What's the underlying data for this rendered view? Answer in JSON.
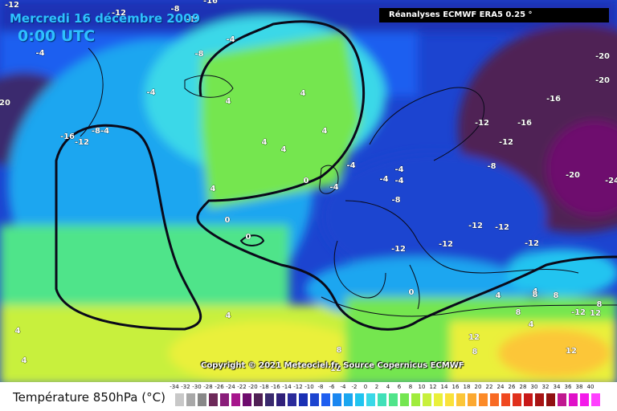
{
  "header": {
    "date": "Mercredi 16 décembre 2009",
    "time": "0:00 UTC",
    "source": "Réanalyses ECMWF ERA5 0.25 °"
  },
  "copyright": "Copyright © 2021 Meteociel.fr, Source Copernicus ECMWF",
  "legend": {
    "title": "Température 850hPa (°C)",
    "ticks": [
      "-34",
      "-32",
      "-30",
      "-28",
      "-26",
      "-24",
      "-22",
      "-20",
      "-18",
      "-16",
      "-14",
      "-12",
      "-10",
      "-8",
      "-6",
      "-4",
      "-2",
      "0",
      "2",
      "4",
      "6",
      "8",
      "10",
      "12",
      "14",
      "16",
      "18",
      "20",
      "22",
      "24",
      "26",
      "28",
      "30",
      "32",
      "34",
      "36",
      "38",
      "40"
    ],
    "colors": [
      "#c8c8c8",
      "#a8a8a8",
      "#888888",
      "#6e2a5a",
      "#8a1d7a",
      "#a6158c",
      "#6e0b6e",
      "#502055",
      "#3a2a6e",
      "#30207a",
      "#2a2a9a",
      "#1a30b4",
      "#1c44d0",
      "#1e5ef0",
      "#1a86f0",
      "#1aa6f0",
      "#20c4f0",
      "#3ad8e8",
      "#40e0b8",
      "#50e48a",
      "#74e650",
      "#a0ec3c",
      "#c8f03c",
      "#eaf03a",
      "#fae23a",
      "#fcc638",
      "#fca830",
      "#fc8a28",
      "#f86a24",
      "#f04820",
      "#e0301c",
      "#c81818",
      "#a81414",
      "#901010",
      "#c01890",
      "#e010c8",
      "#f41aea",
      "#ff40ff"
    ]
  },
  "map_labels": [
    {
      "text": "-12"
    },
    {
      "text": "-8"
    },
    {
      "text": "-16"
    },
    {
      "text": "-12"
    },
    {
      "text": "-16"
    },
    {
      "text": "-4"
    },
    {
      "text": "-8"
    },
    {
      "text": "-4"
    },
    {
      "text": "-4"
    },
    {
      "text": "4"
    },
    {
      "text": "4"
    },
    {
      "text": "4"
    },
    {
      "text": "4"
    },
    {
      "text": "4"
    },
    {
      "text": "4"
    },
    {
      "text": "0"
    },
    {
      "text": "0"
    },
    {
      "text": "0"
    },
    {
      "text": "4"
    },
    {
      "text": "-4"
    },
    {
      "text": "-4"
    },
    {
      "text": "-4"
    },
    {
      "text": "-4"
    },
    {
      "text": "-4"
    },
    {
      "text": "-8"
    },
    {
      "text": "-8"
    },
    {
      "text": "-12"
    },
    {
      "text": "-12"
    },
    {
      "text": "-12"
    },
    {
      "text": "-12"
    },
    {
      "text": "-12"
    },
    {
      "text": "-12"
    },
    {
      "text": "-12"
    },
    {
      "text": "-16"
    },
    {
      "text": "-16"
    },
    {
      "text": "-20"
    },
    {
      "text": "-20"
    },
    {
      "text": "-20"
    },
    {
      "text": "-24"
    },
    {
      "text": "-16"
    },
    {
      "text": "-12"
    },
    {
      "text": "-8-4"
    },
    {
      "text": "20"
    },
    {
      "text": "0"
    },
    {
      "text": "4"
    },
    {
      "text": "4"
    },
    {
      "text": "8"
    },
    {
      "text": "8"
    },
    {
      "text": "12"
    },
    {
      "text": "8"
    },
    {
      "text": "12"
    },
    {
      "text": "4"
    },
    {
      "text": "8"
    },
    {
      "text": "4"
    },
    {
      "text": "8"
    },
    {
      "text": "4"
    },
    {
      "text": "8"
    },
    {
      "text": "12"
    },
    {
      "text": "-12"
    },
    {
      "text": "12"
    }
  ]
}
